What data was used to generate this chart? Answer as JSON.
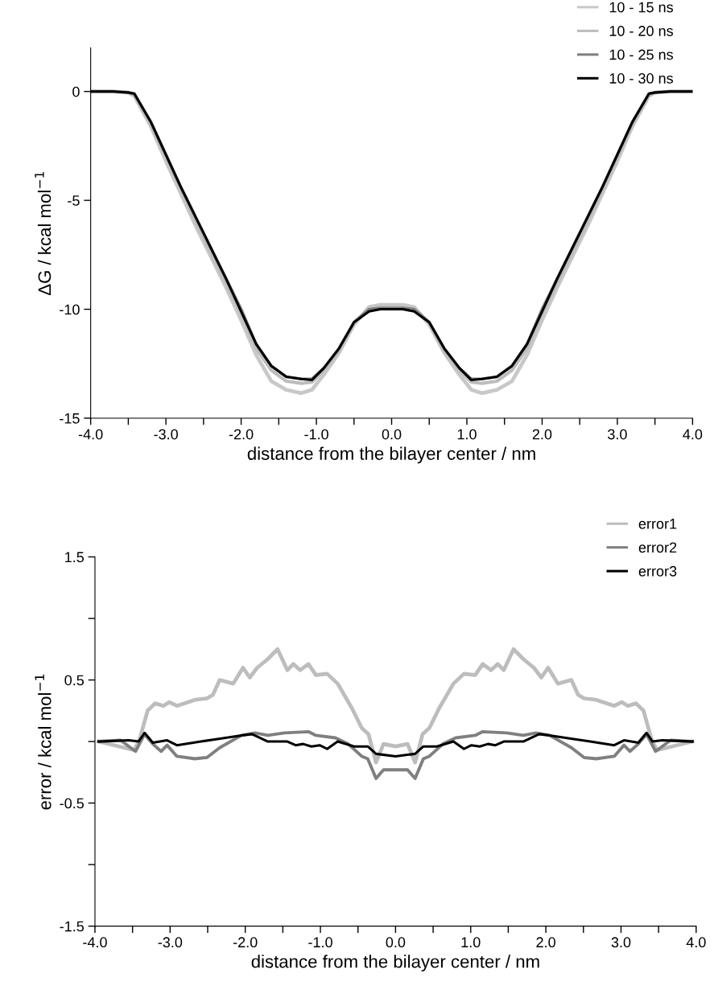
{
  "chart_data": [
    {
      "type": "line",
      "xlabel": "distance from the bilayer center / nm",
      "ylabel": "ΔG / kcal mol$^{−1}$",
      "xlim": [
        -4,
        4
      ],
      "ylim": [
        -15,
        2
      ],
      "xticks": [
        {
          "value": -4,
          "label": "-4.0"
        },
        {
          "value": -3.5,
          "label": null
        },
        {
          "value": -3,
          "label": "-3.0"
        },
        {
          "value": -2.5,
          "label": null
        },
        {
          "value": -2,
          "label": "-2.0"
        },
        {
          "value": -1.5,
          "label": null
        },
        {
          "value": -1,
          "label": "-1.0"
        },
        {
          "value": -0.5,
          "label": null
        },
        {
          "value": 0,
          "label": "0.0"
        },
        {
          "value": 0.5,
          "label": null
        },
        {
          "value": 1,
          "label": "1.0"
        },
        {
          "value": 1.5,
          "label": null
        },
        {
          "value": 2,
          "label": "2.0"
        },
        {
          "value": 2.5,
          "label": null
        },
        {
          "value": 3,
          "label": "3.0"
        },
        {
          "value": 3.5,
          "label": null
        },
        {
          "value": 4,
          "label": "4.0"
        }
      ],
      "yticks": [
        0,
        -5,
        -10,
        -15
      ],
      "grid": false,
      "legend": "top right",
      "marker": "none",
      "line_style": "solid",
      "x": [
        -4,
        -3.7,
        -3.5,
        -3.42,
        -3.2,
        -3.0,
        -2.8,
        -2.6,
        -2.4,
        -2.2,
        -2.0,
        -1.8,
        -1.6,
        -1.4,
        -1.2,
        -1.06,
        -0.9,
        -0.7,
        -0.5,
        -0.3,
        -0.15,
        0,
        0.15,
        0.3,
        0.5,
        0.7,
        0.9,
        1.06,
        1.2,
        1.4,
        1.6,
        1.8,
        2.0,
        2.2,
        2.4,
        2.6,
        2.8,
        3.0,
        3.2,
        3.42,
        3.5,
        3.7,
        4
      ],
      "series": [
        {
          "name": "10 - 15 ns",
          "color": "#c8c8c8",
          "values": [
            0,
            0,
            -0.05,
            -0.2,
            -1.6,
            -3.2,
            -4.7,
            -6.2,
            -7.6,
            -9.0,
            -10.5,
            -12.1,
            -13.3,
            -13.7,
            -13.85,
            -13.7,
            -13.0,
            -12.0,
            -10.7,
            -9.9,
            -9.8,
            -9.8,
            -9.8,
            -9.9,
            -10.7,
            -12.0,
            -13.0,
            -13.7,
            -13.85,
            -13.7,
            -13.3,
            -12.1,
            -10.5,
            -9.0,
            -7.6,
            -6.2,
            -4.7,
            -3.2,
            -1.6,
            -0.2,
            -0.05,
            0,
            0
          ]
        },
        {
          "name": "10 - 20 ns",
          "color": "#bdbdbd",
          "values": [
            0,
            0,
            -0.05,
            -0.15,
            -1.5,
            -3.0,
            -4.5,
            -6.0,
            -7.4,
            -8.8,
            -10.2,
            -11.8,
            -12.8,
            -13.3,
            -13.4,
            -13.35,
            -12.8,
            -11.9,
            -10.6,
            -10.0,
            -9.9,
            -9.9,
            -9.9,
            -10.0,
            -10.6,
            -11.9,
            -12.8,
            -13.35,
            -13.4,
            -13.3,
            -12.8,
            -11.8,
            -10.2,
            -8.8,
            -7.4,
            -6.0,
            -4.5,
            -3.0,
            -1.5,
            -0.15,
            -0.05,
            0,
            0
          ]
        },
        {
          "name": "10 - 25 ns",
          "color": "#7f7f7f",
          "values": [
            0,
            0,
            -0.05,
            -0.1,
            -1.4,
            -2.9,
            -4.4,
            -5.8,
            -7.2,
            -8.6,
            -10.0,
            -11.6,
            -12.6,
            -13.1,
            -13.2,
            -13.2,
            -12.7,
            -11.8,
            -10.6,
            -10.0,
            -9.95,
            -9.95,
            -9.95,
            -10.0,
            -10.6,
            -11.8,
            -12.7,
            -13.2,
            -13.2,
            -13.1,
            -12.6,
            -11.6,
            -10.0,
            -8.6,
            -7.2,
            -5.8,
            -4.4,
            -2.9,
            -1.4,
            -0.1,
            -0.05,
            0,
            0
          ]
        },
        {
          "name": "10 - 30 ns",
          "color": "#000000",
          "values": [
            0,
            0,
            -0.05,
            -0.1,
            -1.4,
            -2.9,
            -4.4,
            -5.8,
            -7.2,
            -8.6,
            -10.1,
            -11.6,
            -12.6,
            -13.1,
            -13.2,
            -13.25,
            -12.7,
            -11.8,
            -10.6,
            -10.1,
            -10.0,
            -10.0,
            -10.0,
            -10.1,
            -10.6,
            -11.8,
            -12.7,
            -13.25,
            -13.2,
            -13.1,
            -12.6,
            -11.6,
            -10.1,
            -8.6,
            -7.2,
            -5.8,
            -4.4,
            -2.9,
            -1.4,
            -0.1,
            -0.05,
            0,
            0
          ]
        }
      ]
    },
    {
      "type": "line",
      "xlabel": "distance from the bilayer center / nm",
      "ylabel": "error / kcal mol$^{−1}$",
      "xlim": [
        -4,
        4
      ],
      "ylim": [
        -1.5,
        1.5
      ],
      "xticks": [
        {
          "value": -4,
          "label": "-4.0"
        },
        {
          "value": -3.5,
          "label": null
        },
        {
          "value": -3,
          "label": "-3.0"
        },
        {
          "value": -2.5,
          "label": null
        },
        {
          "value": -2,
          "label": "-2.0"
        },
        {
          "value": -1.5,
          "label": null
        },
        {
          "value": -1,
          "label": "-1.0"
        },
        {
          "value": -0.5,
          "label": null
        },
        {
          "value": 0,
          "label": "0.0"
        },
        {
          "value": 0.5,
          "label": null
        },
        {
          "value": 1,
          "label": "1.0"
        },
        {
          "value": 1.5,
          "label": null
        },
        {
          "value": 2,
          "label": "2.0"
        },
        {
          "value": 2.5,
          "label": null
        },
        {
          "value": 3,
          "label": "3.0"
        },
        {
          "value": 3.5,
          "label": null
        },
        {
          "value": 4,
          "label": "4.0"
        }
      ],
      "yticks": [
        1.5,
        {
          "value": 1.0,
          "label": null
        },
        0.5,
        {
          "value": 0,
          "label": null
        },
        -0.5,
        {
          "value": -1.0,
          "label": null
        },
        -1.5
      ],
      "grid": false,
      "legend": "top right",
      "marker": "none",
      "line_style": "solid",
      "series": [
        {
          "name": "error1",
          "color": "#bdbdbd",
          "x": [
            -3.95,
            -3.48,
            -3.41,
            -3.3,
            -3.2,
            -3.09,
            -3.01,
            -2.91,
            -2.66,
            -2.51,
            -2.43,
            -2.34,
            -2.16,
            -2.03,
            -1.94,
            -1.84,
            -1.7,
            -1.57,
            -1.44,
            -1.36,
            -1.27,
            -1.16,
            -1.06,
            -0.91,
            -0.77,
            -0.58,
            -0.45,
            -0.36,
            -0.26,
            -0.16,
            0,
            0.16,
            0.26,
            0.36,
            0.45,
            0.58,
            0.77,
            0.91,
            1.06,
            1.16,
            1.27,
            1.36,
            1.44,
            1.57,
            1.7,
            1.84,
            1.94,
            2.03,
            2.16,
            2.34,
            2.43,
            2.51,
            2.66,
            2.91,
            3.01,
            3.09,
            3.2,
            3.3,
            3.41,
            3.48,
            3.95
          ],
          "values": [
            0,
            -0.07,
            0.01,
            0.25,
            0.31,
            0.29,
            0.32,
            0.29,
            0.34,
            0.35,
            0.38,
            0.5,
            0.47,
            0.6,
            0.52,
            0.6,
            0.67,
            0.75,
            0.58,
            0.63,
            0.58,
            0.63,
            0.54,
            0.55,
            0.47,
            0.27,
            0.11,
            0.06,
            -0.17,
            -0.02,
            -0.04,
            -0.02,
            -0.17,
            0.06,
            0.11,
            0.27,
            0.47,
            0.55,
            0.54,
            0.63,
            0.58,
            0.63,
            0.58,
            0.75,
            0.67,
            0.6,
            0.52,
            0.6,
            0.47,
            0.5,
            0.38,
            0.35,
            0.34,
            0.29,
            0.32,
            0.29,
            0.31,
            0.25,
            0.01,
            -0.07,
            0
          ]
        },
        {
          "name": "error2",
          "color": "#7f7f7f",
          "x": [
            -3.95,
            -3.66,
            -3.46,
            -3.34,
            -3.23,
            -3.12,
            -3.04,
            -2.91,
            -2.67,
            -2.51,
            -2.34,
            -2.05,
            -1.87,
            -1.7,
            -1.48,
            -1.16,
            -1.06,
            -0.8,
            -0.63,
            -0.45,
            -0.37,
            -0.26,
            -0.16,
            0,
            0.16,
            0.26,
            0.37,
            0.45,
            0.63,
            0.8,
            1.06,
            1.16,
            1.48,
            1.7,
            1.87,
            2.05,
            2.34,
            2.51,
            2.67,
            2.91,
            3.04,
            3.12,
            3.23,
            3.34,
            3.46,
            3.66,
            3.95
          ],
          "values": [
            0,
            0.01,
            -0.08,
            0.06,
            -0.02,
            -0.08,
            -0.03,
            -0.12,
            -0.14,
            -0.13,
            -0.05,
            0.05,
            0.07,
            0.05,
            0.07,
            0.08,
            0.05,
            0.03,
            -0.02,
            -0.12,
            -0.14,
            -0.3,
            -0.23,
            -0.23,
            -0.23,
            -0.3,
            -0.14,
            -0.12,
            -0.02,
            0.03,
            0.05,
            0.08,
            0.07,
            0.05,
            0.07,
            0.05,
            -0.05,
            -0.13,
            -0.14,
            -0.12,
            -0.03,
            -0.08,
            -0.02,
            0.06,
            -0.08,
            0.01,
            0
          ]
        },
        {
          "name": "error3",
          "color": "#000000",
          "x": [
            -3.95,
            -3.55,
            -3.42,
            -3.34,
            -3.23,
            -3.04,
            -2.91,
            -2.69,
            -2.59,
            -2.37,
            -2.05,
            -1.91,
            -1.7,
            -1.44,
            -1.33,
            -1.23,
            -1.12,
            -1.01,
            -0.91,
            -0.77,
            -0.55,
            -0.37,
            -0.26,
            0,
            0.26,
            0.37,
            0.55,
            0.77,
            0.91,
            1.01,
            1.12,
            1.23,
            1.33,
            1.44,
            1.7,
            1.91,
            2.05,
            2.37,
            2.59,
            2.69,
            2.91,
            3.04,
            3.23,
            3.34,
            3.42,
            3.55,
            3.95
          ],
          "values": [
            0,
            0.01,
            0,
            0.07,
            -0.01,
            0.01,
            -0.03,
            -0.01,
            0,
            0.02,
            0.05,
            0.06,
            0,
            0,
            -0.03,
            -0.02,
            -0.04,
            -0.03,
            -0.06,
            0,
            -0.04,
            -0.04,
            -0.1,
            -0.12,
            -0.1,
            -0.04,
            -0.04,
            0,
            -0.06,
            -0.03,
            -0.04,
            -0.02,
            -0.03,
            0,
            0,
            0.06,
            0.05,
            0.02,
            0,
            -0.01,
            -0.03,
            0.01,
            -0.01,
            0.07,
            0,
            0.01,
            0
          ]
        }
      ]
    }
  ]
}
